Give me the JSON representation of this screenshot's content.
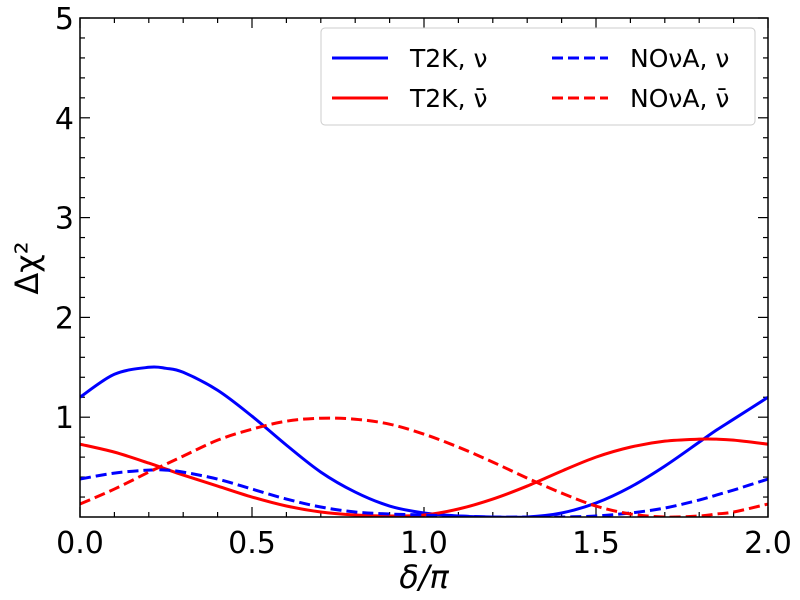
{
  "chart_data": {
    "type": "line",
    "title": "",
    "xlabel": "δ/π",
    "ylabel": "Δχ²",
    "xlim": [
      0.0,
      2.0
    ],
    "ylim": [
      0.0,
      5.0
    ],
    "x_ticks": [
      0.0,
      0.5,
      1.0,
      1.5,
      2.0
    ],
    "x_tick_labels": [
      "0.0",
      "0.5",
      "1.0",
      "1.5",
      "2.0"
    ],
    "y_ticks": [
      1,
      2,
      3,
      4,
      5
    ],
    "y_tick_labels": [
      "1",
      "2",
      "3",
      "4",
      "5"
    ],
    "legend_position": "top-right",
    "x": [
      0.0,
      0.1,
      0.2,
      0.25,
      0.3,
      0.4,
      0.5,
      0.6,
      0.7,
      0.8,
      0.9,
      1.0,
      1.1,
      1.2,
      1.3,
      1.4,
      1.5,
      1.6,
      1.7,
      1.8,
      1.85,
      1.9,
      2.0
    ],
    "series": [
      {
        "name": "T2K, ν",
        "color": "#0000ff",
        "dash": "solid",
        "values": [
          1.2,
          1.43,
          1.5,
          1.49,
          1.45,
          1.27,
          1.01,
          0.72,
          0.45,
          0.25,
          0.11,
          0.04,
          0.01,
          0.0,
          0.0,
          0.04,
          0.14,
          0.3,
          0.51,
          0.75,
          0.87,
          0.98,
          1.2
        ]
      },
      {
        "name": "T2K, ν̄",
        "color": "#ff0000",
        "dash": "solid",
        "values": [
          0.73,
          0.65,
          0.54,
          0.48,
          0.42,
          0.31,
          0.2,
          0.11,
          0.05,
          0.02,
          0.01,
          0.02,
          0.08,
          0.18,
          0.31,
          0.46,
          0.6,
          0.7,
          0.76,
          0.78,
          0.78,
          0.77,
          0.73
        ]
      },
      {
        "name": "NOνA, ν",
        "color": "#0000ff",
        "dash": "dashed",
        "values": [
          0.38,
          0.44,
          0.47,
          0.47,
          0.45,
          0.38,
          0.28,
          0.18,
          0.1,
          0.05,
          0.03,
          0.02,
          0.01,
          0.0,
          0.0,
          0.0,
          0.01,
          0.04,
          0.09,
          0.17,
          0.22,
          0.27,
          0.38
        ]
      },
      {
        "name": "NOνA, ν̄",
        "color": "#ff0000",
        "dash": "dashed",
        "values": [
          0.13,
          0.28,
          0.45,
          0.53,
          0.61,
          0.77,
          0.88,
          0.96,
          0.99,
          0.98,
          0.93,
          0.83,
          0.7,
          0.55,
          0.39,
          0.24,
          0.11,
          0.03,
          0.0,
          0.01,
          0.03,
          0.05,
          0.13
        ]
      }
    ]
  }
}
